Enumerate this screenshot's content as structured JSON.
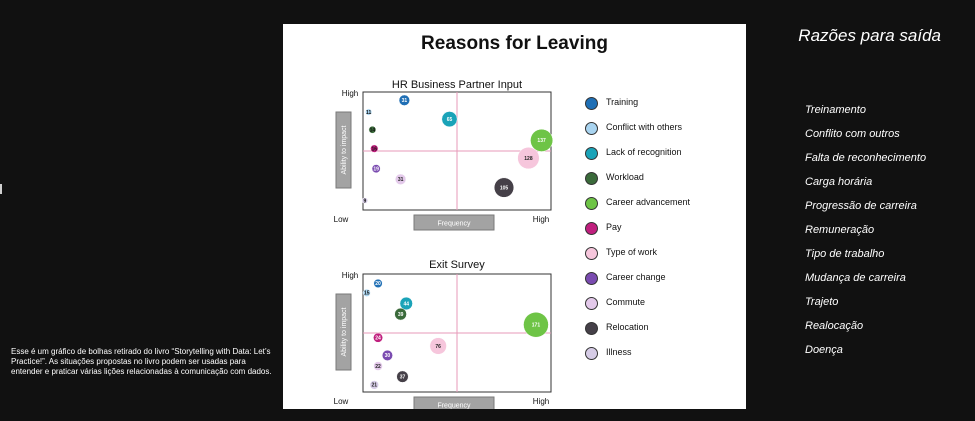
{
  "chart_data": {
    "type": "scatter",
    "title": "Reasons for Leaving",
    "categories": [
      "Training",
      "Conflict with others",
      "Lack of recognition",
      "Workload",
      "Career advancement",
      "Pay",
      "Type of work",
      "Career change",
      "Commute",
      "Relocation",
      "Illness"
    ],
    "colors": [
      "#1f6fb5",
      "#a9d4f0",
      "#1aa3b8",
      "#3a6a3a",
      "#6ec446",
      "#c01f7e",
      "#f6c6dc",
      "#7a4bb0",
      "#e3c9ea",
      "#454048",
      "#d6cce6"
    ],
    "legend_position": "right",
    "panels": [
      {
        "title": "HR Business Partner Input",
        "xlabel": "Frequency",
        "ylabel": "Ability to impact",
        "x_ticks": [
          "Low",
          "High"
        ],
        "y_ticks": [
          "Low",
          "High"
        ],
        "xlim": [
          0,
          10
        ],
        "ylim": [
          0,
          10
        ],
        "divider": {
          "x": 5,
          "y": 5
        },
        "points": [
          {
            "category": "Training",
            "x": 2.2,
            "y": 9.3,
            "value": 31
          },
          {
            "category": "Conflict with others",
            "x": 0.3,
            "y": 8.3,
            "value": 11
          },
          {
            "category": "Lack of recognition",
            "x": 4.6,
            "y": 7.7,
            "value": 65
          },
          {
            "category": "Workload",
            "x": 0.5,
            "y": 6.8,
            "value": 14
          },
          {
            "category": "Career advancement",
            "x": 9.5,
            "y": 5.9,
            "value": 137
          },
          {
            "category": "Pay",
            "x": 0.6,
            "y": 5.2,
            "value": 16
          },
          {
            "category": "Type of work",
            "x": 8.8,
            "y": 4.4,
            "value": 128
          },
          {
            "category": "Career change",
            "x": 0.7,
            "y": 3.5,
            "value": 19
          },
          {
            "category": "Commute",
            "x": 2.0,
            "y": 2.6,
            "value": 31
          },
          {
            "category": "Relocation",
            "x": 7.5,
            "y": 1.9,
            "value": 105
          },
          {
            "category": "Illness",
            "x": 0.1,
            "y": 0.8,
            "value": 9
          }
        ]
      },
      {
        "title": "Exit Survey",
        "xlabel": "Frequency",
        "ylabel": "Ability to impact",
        "x_ticks": [
          "Low",
          "High"
        ],
        "y_ticks": [
          "Low",
          "High"
        ],
        "xlim": [
          0,
          10
        ],
        "ylim": [
          0,
          10
        ],
        "divider": {
          "x": 5,
          "y": 5
        },
        "points": [
          {
            "category": "Training",
            "x": 0.8,
            "y": 9.2,
            "value": 20
          },
          {
            "category": "Conflict with others",
            "x": 0.2,
            "y": 8.4,
            "value": 15
          },
          {
            "category": "Lack of recognition",
            "x": 2.3,
            "y": 7.5,
            "value": 44
          },
          {
            "category": "Workload",
            "x": 2.0,
            "y": 6.6,
            "value": 39
          },
          {
            "category": "Career advancement",
            "x": 9.2,
            "y": 5.7,
            "value": 171
          },
          {
            "category": "Pay",
            "x": 0.8,
            "y": 4.6,
            "value": 24
          },
          {
            "category": "Type of work",
            "x": 4.0,
            "y": 3.9,
            "value": 76
          },
          {
            "category": "Career change",
            "x": 1.3,
            "y": 3.1,
            "value": 30
          },
          {
            "category": "Commute",
            "x": 0.8,
            "y": 2.2,
            "value": 22
          },
          {
            "category": "Relocation",
            "x": 2.1,
            "y": 1.3,
            "value": 37
          },
          {
            "category": "Illness",
            "x": 0.6,
            "y": 0.6,
            "value": 21
          }
        ]
      }
    ]
  },
  "translation": {
    "title": "Razões para saída",
    "items": [
      "Treinamento",
      "Conflito com outros",
      "Falta de reconhecimento",
      "Carga horária",
      "Progressão de carreira",
      "Remuneração",
      "Tipo de trabalho",
      "Mudança de carreira",
      "Trajeto",
      "Realocação",
      "Doença"
    ]
  },
  "caption": "Esse é um gráfico de bolhas retirado do livro “Storytelling with Data: Let’s Practice!”. As situações propostas no livro podem ser usadas para entender e praticar várias lições relacionadas à comunicação com dados."
}
